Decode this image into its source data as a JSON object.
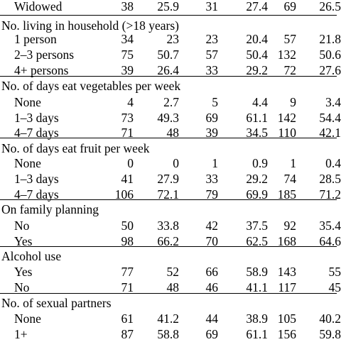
{
  "rows": [
    {
      "kind": "sub",
      "label": "Widowed",
      "v": [
        "38",
        "25.9",
        "31",
        "27.4",
        "69",
        "26.5"
      ]
    },
    {
      "kind": "head",
      "label": "No. living in household (>18 years)"
    },
    {
      "kind": "sub",
      "label": "1 person",
      "v": [
        "34",
        "23",
        "23",
        "20.4",
        "57",
        "21.8"
      ]
    },
    {
      "kind": "sub",
      "label": "2–3 persons",
      "v": [
        "75",
        "50.7",
        "57",
        "50.4",
        "132",
        "50.6"
      ]
    },
    {
      "kind": "sub",
      "label": "4+ persons",
      "v": [
        "39",
        "26.4",
        "33",
        "29.2",
        "72",
        "27.6"
      ]
    },
    {
      "kind": "head",
      "label": "No. of days eat vegetables per week"
    },
    {
      "kind": "sub",
      "label": "None",
      "v": [
        "4",
        "2.7",
        "5",
        "4.4",
        "9",
        "3.4"
      ]
    },
    {
      "kind": "sub",
      "label": "1–3 days",
      "v": [
        "73",
        "49.3",
        "69",
        "61.1",
        "142",
        "54.4"
      ]
    },
    {
      "kind": "sub",
      "label": "4–7 days",
      "v": [
        "71",
        "48",
        "39",
        "34.5",
        "110",
        "42.1"
      ]
    },
    {
      "kind": "head",
      "label": "No. of days eat fruit per week"
    },
    {
      "kind": "sub",
      "label": "None",
      "v": [
        "0",
        "0",
        "1",
        "0.9",
        "1",
        "0.4"
      ]
    },
    {
      "kind": "sub",
      "label": "1–3 days",
      "v": [
        "41",
        "27.9",
        "33",
        "29.2",
        "74",
        "28.5"
      ]
    },
    {
      "kind": "sub",
      "label": "4–7 days",
      "v": [
        "106",
        "72.1",
        "79",
        "69.9",
        "185",
        "71.2"
      ]
    },
    {
      "kind": "head",
      "label": "On family planning"
    },
    {
      "kind": "sub",
      "label": "No",
      "v": [
        "50",
        "33.8",
        "42",
        "37.5",
        "92",
        "35.4"
      ]
    },
    {
      "kind": "sub",
      "label": "Yes",
      "v": [
        "98",
        "66.2",
        "70",
        "62.5",
        "168",
        "64.6"
      ]
    },
    {
      "kind": "head",
      "label": "Alcohol use"
    },
    {
      "kind": "sub",
      "label": "Yes",
      "v": [
        "77",
        "52",
        "66",
        "58.9",
        "143",
        "55"
      ]
    },
    {
      "kind": "sub",
      "label": "No",
      "v": [
        "71",
        "48",
        "46",
        "41.1",
        "117",
        "45"
      ]
    },
    {
      "kind": "head",
      "label": "No. of sexual partners"
    },
    {
      "kind": "sub",
      "label": "None",
      "v": [
        "61",
        "41.2",
        "44",
        "38.9",
        "105",
        "40.2"
      ]
    },
    {
      "kind": "sub",
      "label": "1+",
      "v": [
        "87",
        "58.8",
        "69",
        "61.1",
        "156",
        "59.8"
      ]
    }
  ]
}
